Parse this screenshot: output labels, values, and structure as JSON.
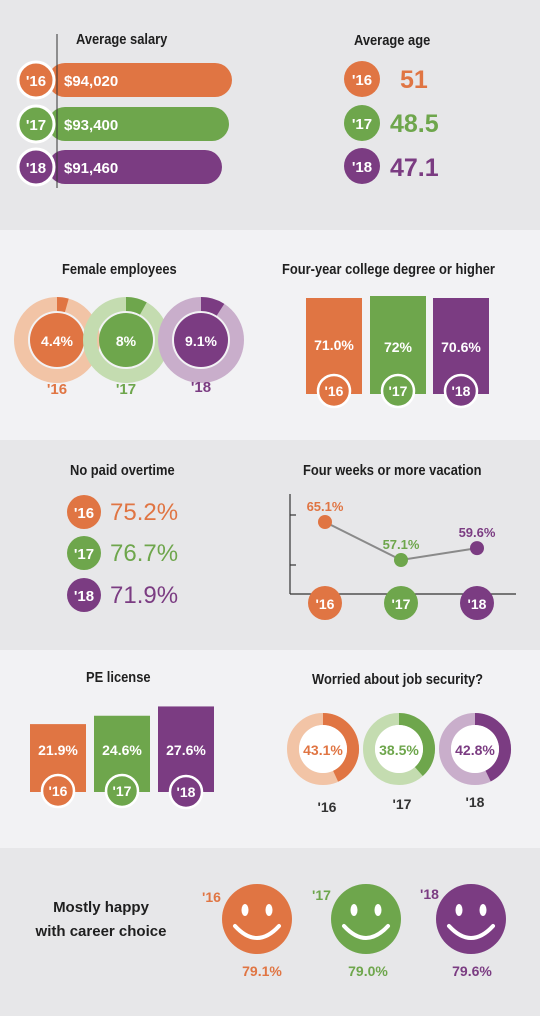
{
  "colors": {
    "y16": "#e07543",
    "y17": "#6ea64c",
    "y18": "#7b3c82",
    "y16_light": "#f2c4a6",
    "y17_light": "#c4dcb0",
    "y18_light": "#c9aecb"
  },
  "salary": {
    "title": "Average salary",
    "years": [
      "'16",
      "'17",
      "'18"
    ],
    "labels": [
      "$94,020",
      "$93,400",
      "$91,460"
    ]
  },
  "age": {
    "title": "Average age",
    "years": [
      "'16",
      "'17",
      "'18"
    ],
    "labels": [
      "51",
      "48.5",
      "47.1"
    ]
  },
  "female": {
    "title": "Female employees",
    "years": [
      "'16",
      "'17",
      "'18"
    ],
    "labels": [
      "4.4%",
      "8%",
      "9.1%"
    ]
  },
  "college": {
    "title": "Four-year college degree or higher",
    "years": [
      "'16",
      "'17",
      "'18"
    ],
    "labels": [
      "71.0%",
      "72%",
      "70.6%"
    ]
  },
  "overtime": {
    "title": "No paid overtime",
    "years": [
      "'16",
      "'17",
      "'18"
    ],
    "labels": [
      "75.2%",
      "76.7%",
      "71.9%"
    ]
  },
  "vacation": {
    "title": "Four weeks or more vacation",
    "years": [
      "'16",
      "'17",
      "'18"
    ],
    "labels": [
      "65.1%",
      "57.1%",
      "59.6%"
    ]
  },
  "pe": {
    "title": "PE license",
    "years": [
      "'16",
      "'17",
      "'18"
    ],
    "labels": [
      "21.9%",
      "24.6%",
      "27.6%"
    ]
  },
  "job_security": {
    "title": "Worried about job security?",
    "years": [
      "'16",
      "'17",
      "'18"
    ],
    "labels": [
      "43.1%",
      "38.5%",
      "42.8%"
    ]
  },
  "happy": {
    "title_line1": "Mostly happy",
    "title_line2": "with career choice",
    "years": [
      "'16",
      "'17",
      "'18"
    ],
    "labels": [
      "79.1%",
      "79.0%",
      "79.6%"
    ]
  },
  "chart_data": [
    {
      "type": "bar",
      "title": "Average salary",
      "categories": [
        "'16",
        "'17",
        "'18"
      ],
      "values": [
        94020,
        93400,
        91460
      ]
    },
    {
      "type": "table",
      "title": "Average age",
      "categories": [
        "'16",
        "'17",
        "'18"
      ],
      "values": [
        51,
        48.5,
        47.1
      ]
    },
    {
      "type": "pie",
      "title": "Female employees",
      "categories": [
        "'16",
        "'17",
        "'18"
      ],
      "values": [
        4.4,
        8,
        9.1
      ]
    },
    {
      "type": "bar",
      "title": "Four-year college degree or higher",
      "categories": [
        "'16",
        "'17",
        "'18"
      ],
      "values": [
        71.0,
        72,
        70.6
      ]
    },
    {
      "type": "table",
      "title": "No paid overtime",
      "categories": [
        "'16",
        "'17",
        "'18"
      ],
      "values": [
        75.2,
        76.7,
        71.9
      ]
    },
    {
      "type": "line",
      "title": "Four weeks or more vacation",
      "categories": [
        "'16",
        "'17",
        "'18"
      ],
      "values": [
        65.1,
        57.1,
        59.6
      ]
    },
    {
      "type": "bar",
      "title": "PE license",
      "categories": [
        "'16",
        "'17",
        "'18"
      ],
      "values": [
        21.9,
        24.6,
        27.6
      ]
    },
    {
      "type": "pie",
      "title": "Worried about job security?",
      "categories": [
        "'16",
        "'17",
        "'18"
      ],
      "values": [
        43.1,
        38.5,
        42.8
      ]
    },
    {
      "type": "table",
      "title": "Mostly happy with career choice",
      "categories": [
        "'16",
        "'17",
        "'18"
      ],
      "values": [
        79.1,
        79.0,
        79.6
      ]
    }
  ]
}
